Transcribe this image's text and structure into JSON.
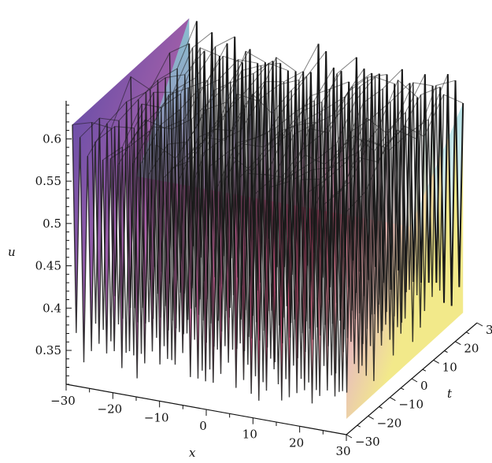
{
  "chart_data": {
    "type": "surface",
    "title": "",
    "zlabel": "u",
    "xlabel": "x",
    "ylabel": "t",
    "zlim": [
      0.31,
      0.645
    ],
    "xlim": [
      -30,
      30
    ],
    "tlim": [
      -30,
      30
    ],
    "z_ticks": [
      "0.35",
      "0.4",
      "0.45",
      "0.5",
      "0.55",
      "0.6"
    ],
    "x_ticks": [
      "−30",
      "−20",
      "−10",
      "0",
      "10",
      "20",
      "30"
    ],
    "t_ticks": [
      "−30",
      "−20",
      "−10",
      "0",
      "10",
      "20",
      "30"
    ],
    "surface_baseline": 0.48,
    "surface_amplitude_min": 0.33,
    "surface_amplitude_max": 0.64,
    "oscillation_count_along_x": 36,
    "grid": false,
    "colors": {
      "back_left": "#5a4aa8",
      "back_top": "#86cfd6",
      "center": "#c86aa8",
      "front": "#e0507e",
      "right": "#e9c2b8",
      "right_edge": "#f2e98a",
      "mesh": "#1a1a1a"
    }
  }
}
